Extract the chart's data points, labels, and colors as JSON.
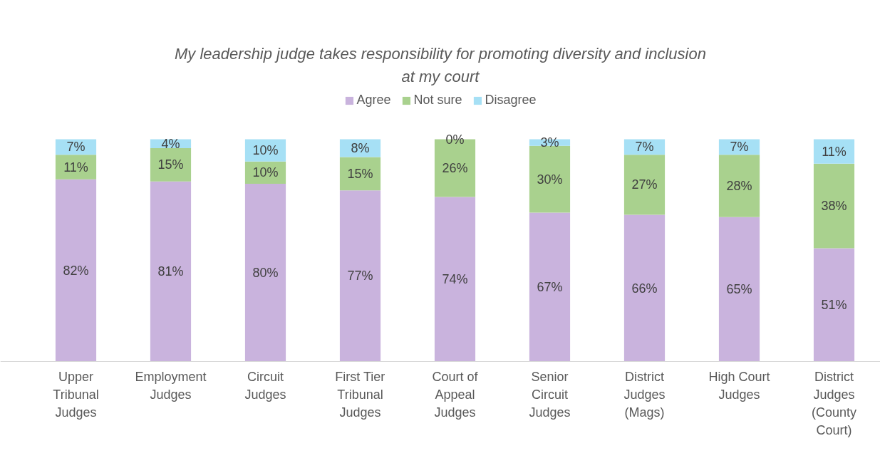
{
  "chart_data": {
    "type": "bar",
    "stacked": true,
    "title": "My leadership judge takes responsibility for promoting diversity and inclusion at my court",
    "categories": [
      "Upper Tribunal Judges",
      "Employment Judges",
      "Circuit Judges",
      "First Tier Tribunal Judges",
      "Court of Appeal Judges",
      "Senior Circuit Judges",
      "District Judges (Mags)",
      "High Court Judges",
      "District Judges (County Court)"
    ],
    "series": [
      {
        "name": "Agree",
        "color": "#c9b3dd",
        "values": [
          82,
          81,
          80,
          77,
          74,
          67,
          66,
          65,
          51
        ],
        "value_labels": [
          "82%",
          "81%",
          "80%",
          "77%",
          "74%",
          "67%",
          "66%",
          "65%",
          "51%"
        ]
      },
      {
        "name": "Not sure",
        "color": "#a9d18e",
        "values": [
          11,
          15,
          10,
          15,
          26,
          30,
          27,
          28,
          38
        ],
        "value_labels": [
          "11%",
          "15%",
          "10%",
          "15%",
          "26%",
          "30%",
          "27%",
          "28%",
          "38%"
        ]
      },
      {
        "name": "Disagree",
        "color": "#a6e0f5",
        "values": [
          7,
          4,
          10,
          8,
          0,
          3,
          7,
          7,
          11
        ],
        "value_labels": [
          "7%",
          "4%",
          "10%",
          "8%",
          "0%",
          "3%",
          "7%",
          "7%",
          "11%"
        ]
      }
    ],
    "legend": "top",
    "grid": false
  }
}
